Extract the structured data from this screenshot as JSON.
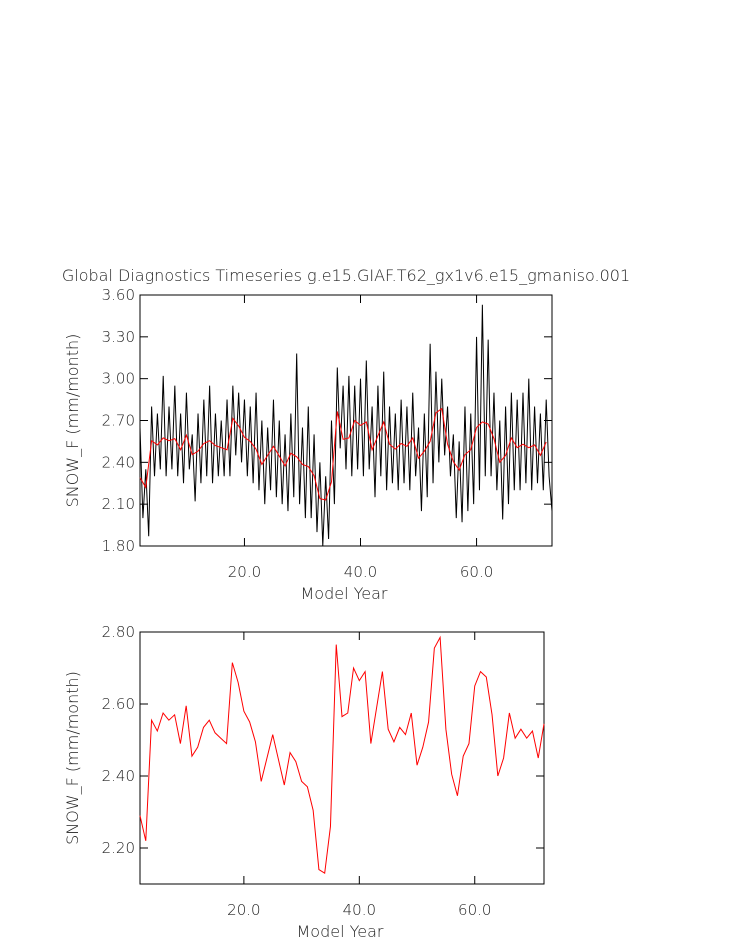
{
  "chart_data": [
    {
      "type": "line",
      "title": "Global Diagnostics Timeseries g.e15.GIAF.T62_gx1v6.e15_gmaniso.001",
      "x_label": "Model Year",
      "y_label": "SNOW_F (mm/month)",
      "xlim": [
        2,
        73
      ],
      "ylim": [
        1.8,
        3.6
      ],
      "xticks": [
        {
          "value": 20,
          "label": "20.0"
        },
        {
          "value": 40,
          "label": "40.0"
        },
        {
          "value": 60,
          "label": "60.0"
        }
      ],
      "yticks": [
        {
          "value": 1.8,
          "label": "1.80"
        },
        {
          "value": 2.1,
          "label": "2.10"
        },
        {
          "value": 2.4,
          "label": "2.40"
        },
        {
          "value": 2.7,
          "label": "2.70"
        },
        {
          "value": 3.0,
          "label": "3.00"
        },
        {
          "value": 3.3,
          "label": "3.30"
        },
        {
          "value": 3.6,
          "label": "3.60"
        }
      ],
      "series": [
        {
          "color": "#000000",
          "x": [
            2,
            2.5,
            3,
            3.5,
            4,
            4.5,
            5,
            5.5,
            6,
            6.5,
            7,
            7.5,
            8,
            8.5,
            9,
            9.5,
            10,
            10.5,
            11,
            11.5,
            12,
            12.5,
            13,
            13.5,
            14,
            14.5,
            15,
            15.5,
            16,
            16.5,
            17,
            17.5,
            18,
            18.5,
            19,
            19.5,
            20,
            20.5,
            21,
            21.5,
            22,
            22.5,
            23,
            23.5,
            24,
            24.5,
            25,
            25.5,
            26,
            26.5,
            27,
            27.5,
            28,
            28.5,
            29,
            29.5,
            30,
            30.5,
            31,
            31.5,
            32,
            32.5,
            33,
            33.5,
            34,
            34.5,
            35,
            35.5,
            36,
            36.5,
            37,
            37.5,
            38,
            38.5,
            39,
            39.5,
            40,
            40.5,
            41,
            41.5,
            42,
            42.5,
            43,
            43.5,
            44,
            44.5,
            45,
            45.5,
            46,
            46.5,
            47,
            47.5,
            48,
            48.5,
            49,
            49.5,
            50,
            50.5,
            51,
            51.5,
            52,
            52.5,
            53,
            53.5,
            54,
            54.5,
            55,
            55.5,
            56,
            56.5,
            57,
            57.5,
            58,
            58.5,
            59,
            59.5,
            60,
            60.5,
            61,
            61.5,
            62,
            62.5,
            63,
            63.5,
            64,
            64.5,
            65,
            65.5,
            66,
            66.5,
            67,
            67.5,
            68,
            68.5,
            69,
            69.5,
            70,
            70.5,
            71,
            71.5,
            72,
            72.5,
            73
          ],
          "values": [
            2.65,
            2.0,
            2.35,
            1.87,
            2.8,
            2.3,
            2.75,
            2.35,
            3.02,
            2.3,
            2.8,
            2.35,
            2.95,
            2.3,
            2.75,
            2.25,
            2.9,
            2.35,
            2.6,
            2.12,
            2.75,
            2.25,
            2.85,
            2.3,
            2.95,
            2.25,
            2.75,
            2.3,
            2.7,
            2.3,
            2.85,
            2.3,
            2.95,
            2.45,
            2.9,
            2.4,
            2.85,
            2.3,
            2.8,
            2.25,
            2.9,
            2.2,
            2.7,
            2.1,
            2.65,
            2.2,
            2.85,
            2.15,
            2.7,
            2.1,
            2.6,
            2.05,
            2.75,
            2.15,
            3.18,
            2.1,
            2.65,
            2.0,
            2.8,
            2.0,
            2.6,
            1.9,
            2.4,
            1.8,
            2.3,
            1.85,
            2.7,
            2.1,
            3.08,
            2.5,
            2.95,
            2.35,
            3.02,
            2.3,
            2.95,
            2.35,
            3.0,
            2.3,
            3.13,
            2.35,
            2.8,
            2.15,
            2.95,
            2.3,
            3.05,
            2.2,
            2.8,
            2.25,
            2.75,
            2.2,
            2.85,
            2.25,
            2.8,
            2.2,
            2.9,
            2.3,
            2.65,
            2.05,
            2.75,
            2.15,
            3.25,
            2.25,
            3.05,
            2.4,
            3.0,
            2.45,
            2.8,
            2.3,
            2.6,
            2.0,
            2.55,
            1.97,
            2.8,
            2.05,
            2.75,
            2.1,
            3.3,
            2.2,
            3.53,
            2.3,
            3.28,
            2.3,
            2.9,
            2.2,
            2.7,
            1.99,
            2.8,
            2.1,
            2.9,
            2.2,
            2.85,
            2.2,
            2.9,
            2.25,
            3.0,
            2.2,
            2.8,
            2.25,
            2.75,
            2.2,
            2.85,
            2.3,
            2.05
          ]
        },
        {
          "color": "#ff0000",
          "x": [
            2,
            3,
            4,
            5,
            6,
            7,
            8,
            9,
            10,
            11,
            12,
            13,
            14,
            15,
            16,
            17,
            18,
            19,
            20,
            21,
            22,
            23,
            24,
            25,
            26,
            27,
            28,
            29,
            30,
            31,
            32,
            33,
            34,
            35,
            36,
            37,
            38,
            39,
            40,
            41,
            42,
            43,
            44,
            45,
            46,
            47,
            48,
            49,
            50,
            51,
            52,
            53,
            54,
            55,
            56,
            57,
            58,
            59,
            60,
            61,
            62,
            63,
            64,
            65,
            66,
            67,
            68,
            69,
            70,
            71,
            72
          ],
          "values": [
            2.29,
            2.22,
            2.555,
            2.525,
            2.575,
            2.555,
            2.57,
            2.49,
            2.595,
            2.455,
            2.48,
            2.535,
            2.555,
            2.52,
            2.505,
            2.49,
            2.715,
            2.66,
            2.58,
            2.55,
            2.495,
            2.385,
            2.45,
            2.515,
            2.445,
            2.375,
            2.465,
            2.44,
            2.385,
            2.37,
            2.305,
            2.14,
            2.13,
            2.26,
            2.765,
            2.565,
            2.575,
            2.7,
            2.665,
            2.69,
            2.49,
            2.59,
            2.69,
            2.53,
            2.495,
            2.535,
            2.515,
            2.575,
            2.43,
            2.48,
            2.55,
            2.755,
            2.785,
            2.53,
            2.405,
            2.345,
            2.455,
            2.49,
            2.65,
            2.69,
            2.675,
            2.57,
            2.4,
            2.45,
            2.575,
            2.505,
            2.53,
            2.505,
            2.525,
            2.45,
            2.545
          ]
        }
      ]
    },
    {
      "type": "line",
      "x_label": "Model Year",
      "y_label": "SNOW_F (mm/month)",
      "xlim": [
        2,
        72
      ],
      "ylim": [
        2.1,
        2.8
      ],
      "xticks": [
        {
          "value": 20,
          "label": "20.0"
        },
        {
          "value": 40,
          "label": "40.0"
        },
        {
          "value": 60,
          "label": "60.0"
        }
      ],
      "yticks": [
        {
          "value": 2.2,
          "label": "2.20"
        },
        {
          "value": 2.4,
          "label": "2.40"
        },
        {
          "value": 2.6,
          "label": "2.60"
        },
        {
          "value": 2.8,
          "label": "2.80"
        }
      ],
      "series": [
        {
          "color": "#ff0000",
          "x": [
            2,
            3,
            4,
            5,
            6,
            7,
            8,
            9,
            10,
            11,
            12,
            13,
            14,
            15,
            16,
            17,
            18,
            19,
            20,
            21,
            22,
            23,
            24,
            25,
            26,
            27,
            28,
            29,
            30,
            31,
            32,
            33,
            34,
            35,
            36,
            37,
            38,
            39,
            40,
            41,
            42,
            43,
            44,
            45,
            46,
            47,
            48,
            49,
            50,
            51,
            52,
            53,
            54,
            55,
            56,
            57,
            58,
            59,
            60,
            61,
            62,
            63,
            64,
            65,
            66,
            67,
            68,
            69,
            70,
            71,
            72
          ],
          "values": [
            2.29,
            2.22,
            2.555,
            2.525,
            2.575,
            2.555,
            2.57,
            2.49,
            2.595,
            2.455,
            2.48,
            2.535,
            2.555,
            2.52,
            2.505,
            2.49,
            2.715,
            2.66,
            2.58,
            2.55,
            2.495,
            2.385,
            2.45,
            2.515,
            2.445,
            2.375,
            2.465,
            2.44,
            2.385,
            2.37,
            2.305,
            2.14,
            2.13,
            2.26,
            2.765,
            2.565,
            2.575,
            2.7,
            2.665,
            2.69,
            2.49,
            2.59,
            2.69,
            2.53,
            2.495,
            2.535,
            2.515,
            2.575,
            2.43,
            2.48,
            2.55,
            2.755,
            2.785,
            2.53,
            2.405,
            2.345,
            2.455,
            2.49,
            2.65,
            2.69,
            2.675,
            2.57,
            2.4,
            2.45,
            2.575,
            2.505,
            2.53,
            2.505,
            2.525,
            2.45,
            2.545
          ]
        }
      ]
    }
  ]
}
